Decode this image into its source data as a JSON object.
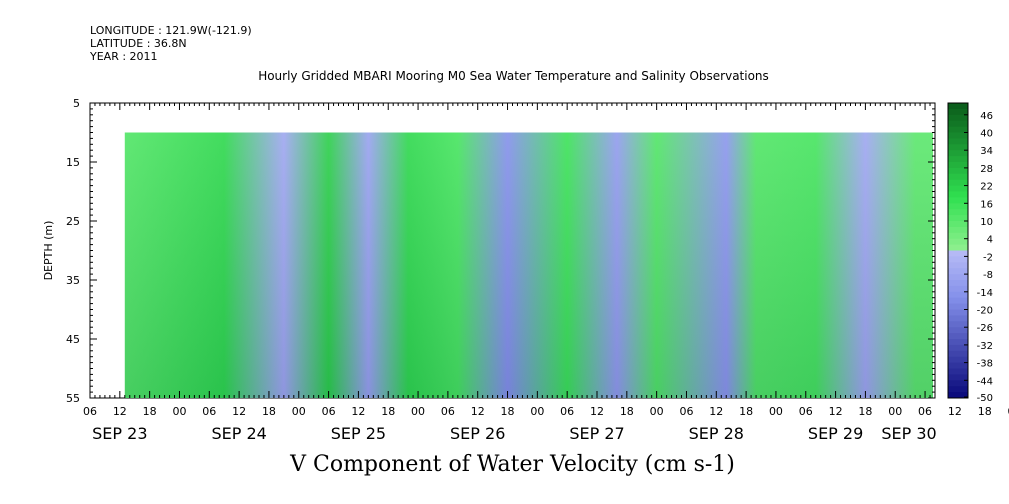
{
  "header": {
    "longitude": "LONGITUDE : 121.9W(-121.9)",
    "latitude": "LATITUDE : 36.8N",
    "year": "YEAR : 2011"
  },
  "title": "Hourly Gridded MBARI Mooring M0 Sea Water Temperature and Salinity Observations",
  "bottom_label": "V Component of Water Velocity (cm s-1)",
  "chart_data": {
    "type": "heatmap",
    "title": "Hourly Gridded MBARI Mooring M0 Sea Water Temperature and Salinity Observations",
    "xlabel": "",
    "ylabel": "DEPTH (m)",
    "variable": "V Component of Water Velocity (cm s-1)",
    "y_ticks": [
      5,
      15,
      25,
      35,
      45,
      55
    ],
    "ylim": [
      55,
      5
    ],
    "y_reversed": true,
    "data_depth_range": [
      10,
      55
    ],
    "x_hour_ticks": [
      "06",
      "12",
      "18",
      "00",
      "06",
      "12",
      "18",
      "00",
      "06",
      "12",
      "18",
      "00",
      "06",
      "12",
      "18",
      "00",
      "06",
      "12",
      "18",
      "00",
      "06",
      "12",
      "18",
      "00",
      "06",
      "12",
      "18",
      "00",
      "06",
      "12",
      "18",
      "00",
      "06"
    ],
    "x_day_labels": [
      "SEP 23",
      "SEP 24",
      "SEP 25",
      "SEP 26",
      "SEP 27",
      "SEP 28",
      "SEP 29",
      "SEP 30"
    ],
    "x_start": "2011-09-23 06:00",
    "x_end": "2011-09-30 08:00",
    "data_start": "2011-09-23 13:00",
    "colorbar_ticks": [
      46,
      40,
      34,
      28,
      22,
      16,
      10,
      4,
      -2,
      -8,
      -14,
      -20,
      -26,
      -32,
      -38,
      -44,
      -50
    ],
    "colorbar_range": [
      -50,
      50
    ],
    "colors": {
      "positive_light": "#90f090",
      "positive_mid": "#30e050",
      "positive_dark": "#0a5a1a",
      "negative_light": "#b8bcf6",
      "negative_mid": "#8490ea",
      "negative_dark": "#08087a"
    },
    "bands": [
      {
        "day_center": "2011-09-23 10:00",
        "sign": "positive",
        "peak": 12
      },
      {
        "day_center": "2011-09-24 09:00",
        "sign": "positive",
        "peak": 20
      },
      {
        "day_center": "2011-09-24 21:00",
        "sign": "negative",
        "peak": -8
      },
      {
        "day_center": "2011-09-25 06:00",
        "sign": "positive",
        "peak": 22
      },
      {
        "day_center": "2011-09-25 14:00",
        "sign": "negative",
        "peak": -10
      },
      {
        "day_center": "2011-09-25 22:00",
        "sign": "positive",
        "peak": 20
      },
      {
        "day_center": "2011-09-26 08:00",
        "sign": "positive",
        "peak": 14
      },
      {
        "day_center": "2011-09-26 18:00",
        "sign": "negative",
        "peak": -16
      },
      {
        "day_center": "2011-09-27 06:00",
        "sign": "positive",
        "peak": 16
      },
      {
        "day_center": "2011-09-27 16:00",
        "sign": "negative",
        "peak": -12
      },
      {
        "day_center": "2011-09-28 00:00",
        "sign": "positive",
        "peak": 12
      },
      {
        "day_center": "2011-09-28 14:00",
        "sign": "negative",
        "peak": -14
      },
      {
        "day_center": "2011-09-28 20:00",
        "sign": "positive",
        "peak": 12
      },
      {
        "day_center": "2011-09-29 08:00",
        "sign": "positive",
        "peak": 14
      },
      {
        "day_center": "2011-09-29 18:00",
        "sign": "negative",
        "peak": -8
      },
      {
        "day_center": "2011-09-30 04:00",
        "sign": "positive",
        "peak": 10
      }
    ]
  }
}
